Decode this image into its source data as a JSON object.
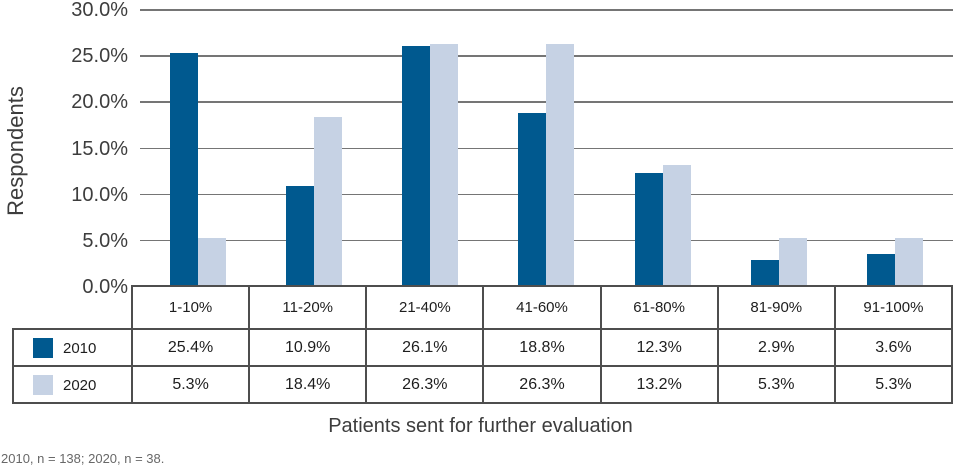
{
  "chart_data": {
    "type": "bar",
    "categories": [
      "1-10%",
      "11-20%",
      "21-40%",
      "41-60%",
      "61-80%",
      "81-90%",
      "91-100%"
    ],
    "series": [
      {
        "name": "2010",
        "color": "#00598F",
        "values": [
          25.4,
          10.9,
          26.1,
          18.8,
          12.3,
          2.9,
          3.6
        ],
        "labels": [
          "25.4%",
          "10.9%",
          "26.1%",
          "18.8%",
          "12.3%",
          "2.9%",
          "3.6%"
        ]
      },
      {
        "name": "2020",
        "color": "#C6D2E4",
        "values": [
          5.3,
          18.4,
          26.3,
          26.3,
          13.2,
          5.3,
          5.3
        ],
        "labels": [
          "5.3%",
          "18.4%",
          "26.3%",
          "26.3%",
          "13.2%",
          "5.3%",
          "5.3%"
        ]
      }
    ],
    "title": "",
    "xlabel": "Patients sent for further evaluation",
    "ylabel": "Respondents",
    "ylim": [
      0,
      30
    ],
    "yticks": [
      {
        "value": 0,
        "label": "0.0%"
      },
      {
        "value": 5,
        "label": "5.0%"
      },
      {
        "value": 10,
        "label": "10.0%"
      },
      {
        "value": 15,
        "label": "15.0%"
      },
      {
        "value": 20,
        "label": "20.0%"
      },
      {
        "value": 25,
        "label": "25.0%"
      },
      {
        "value": 30,
        "label": "30.0%"
      }
    ],
    "grid": true,
    "legend_position": "table-left"
  },
  "footnote": "2010, n = 138; 2020, n = 38.",
  "colors": {
    "bar_2010": "#00598F",
    "bar_2020": "#C6D2E4",
    "gridline": "#757575",
    "table_border": "#4E4E4E",
    "axis_text": "#3D3D3D",
    "table_text": "#1E1E1E",
    "footnote_text": "#686868"
  }
}
